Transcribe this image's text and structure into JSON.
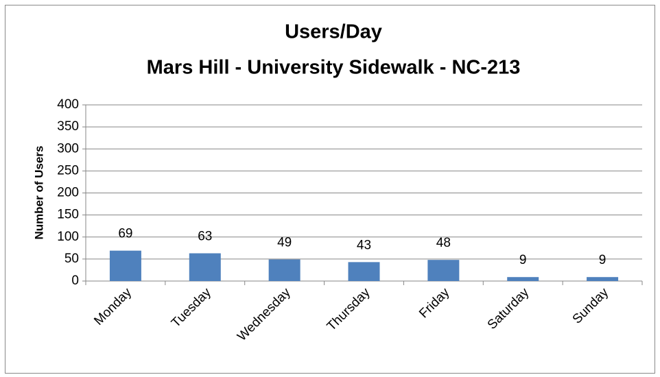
{
  "chart_data": {
    "type": "bar",
    "title": [
      "Users/Day",
      "Mars Hill - University Sidewalk - NC-213"
    ],
    "y_label": "Number of Users",
    "categories": [
      "Monday",
      "Tuesday",
      "Wednesday",
      "Thursday",
      "Friday",
      "Saturday",
      "Sunday"
    ],
    "values": [
      69,
      63,
      49,
      43,
      48,
      9,
      9
    ],
    "color": "#4f81bd",
    "ylim": [
      0,
      400
    ],
    "yticks": [
      0,
      50,
      100,
      150,
      200,
      250,
      300,
      350,
      400
    ],
    "grid": true,
    "data_labels": true
  }
}
